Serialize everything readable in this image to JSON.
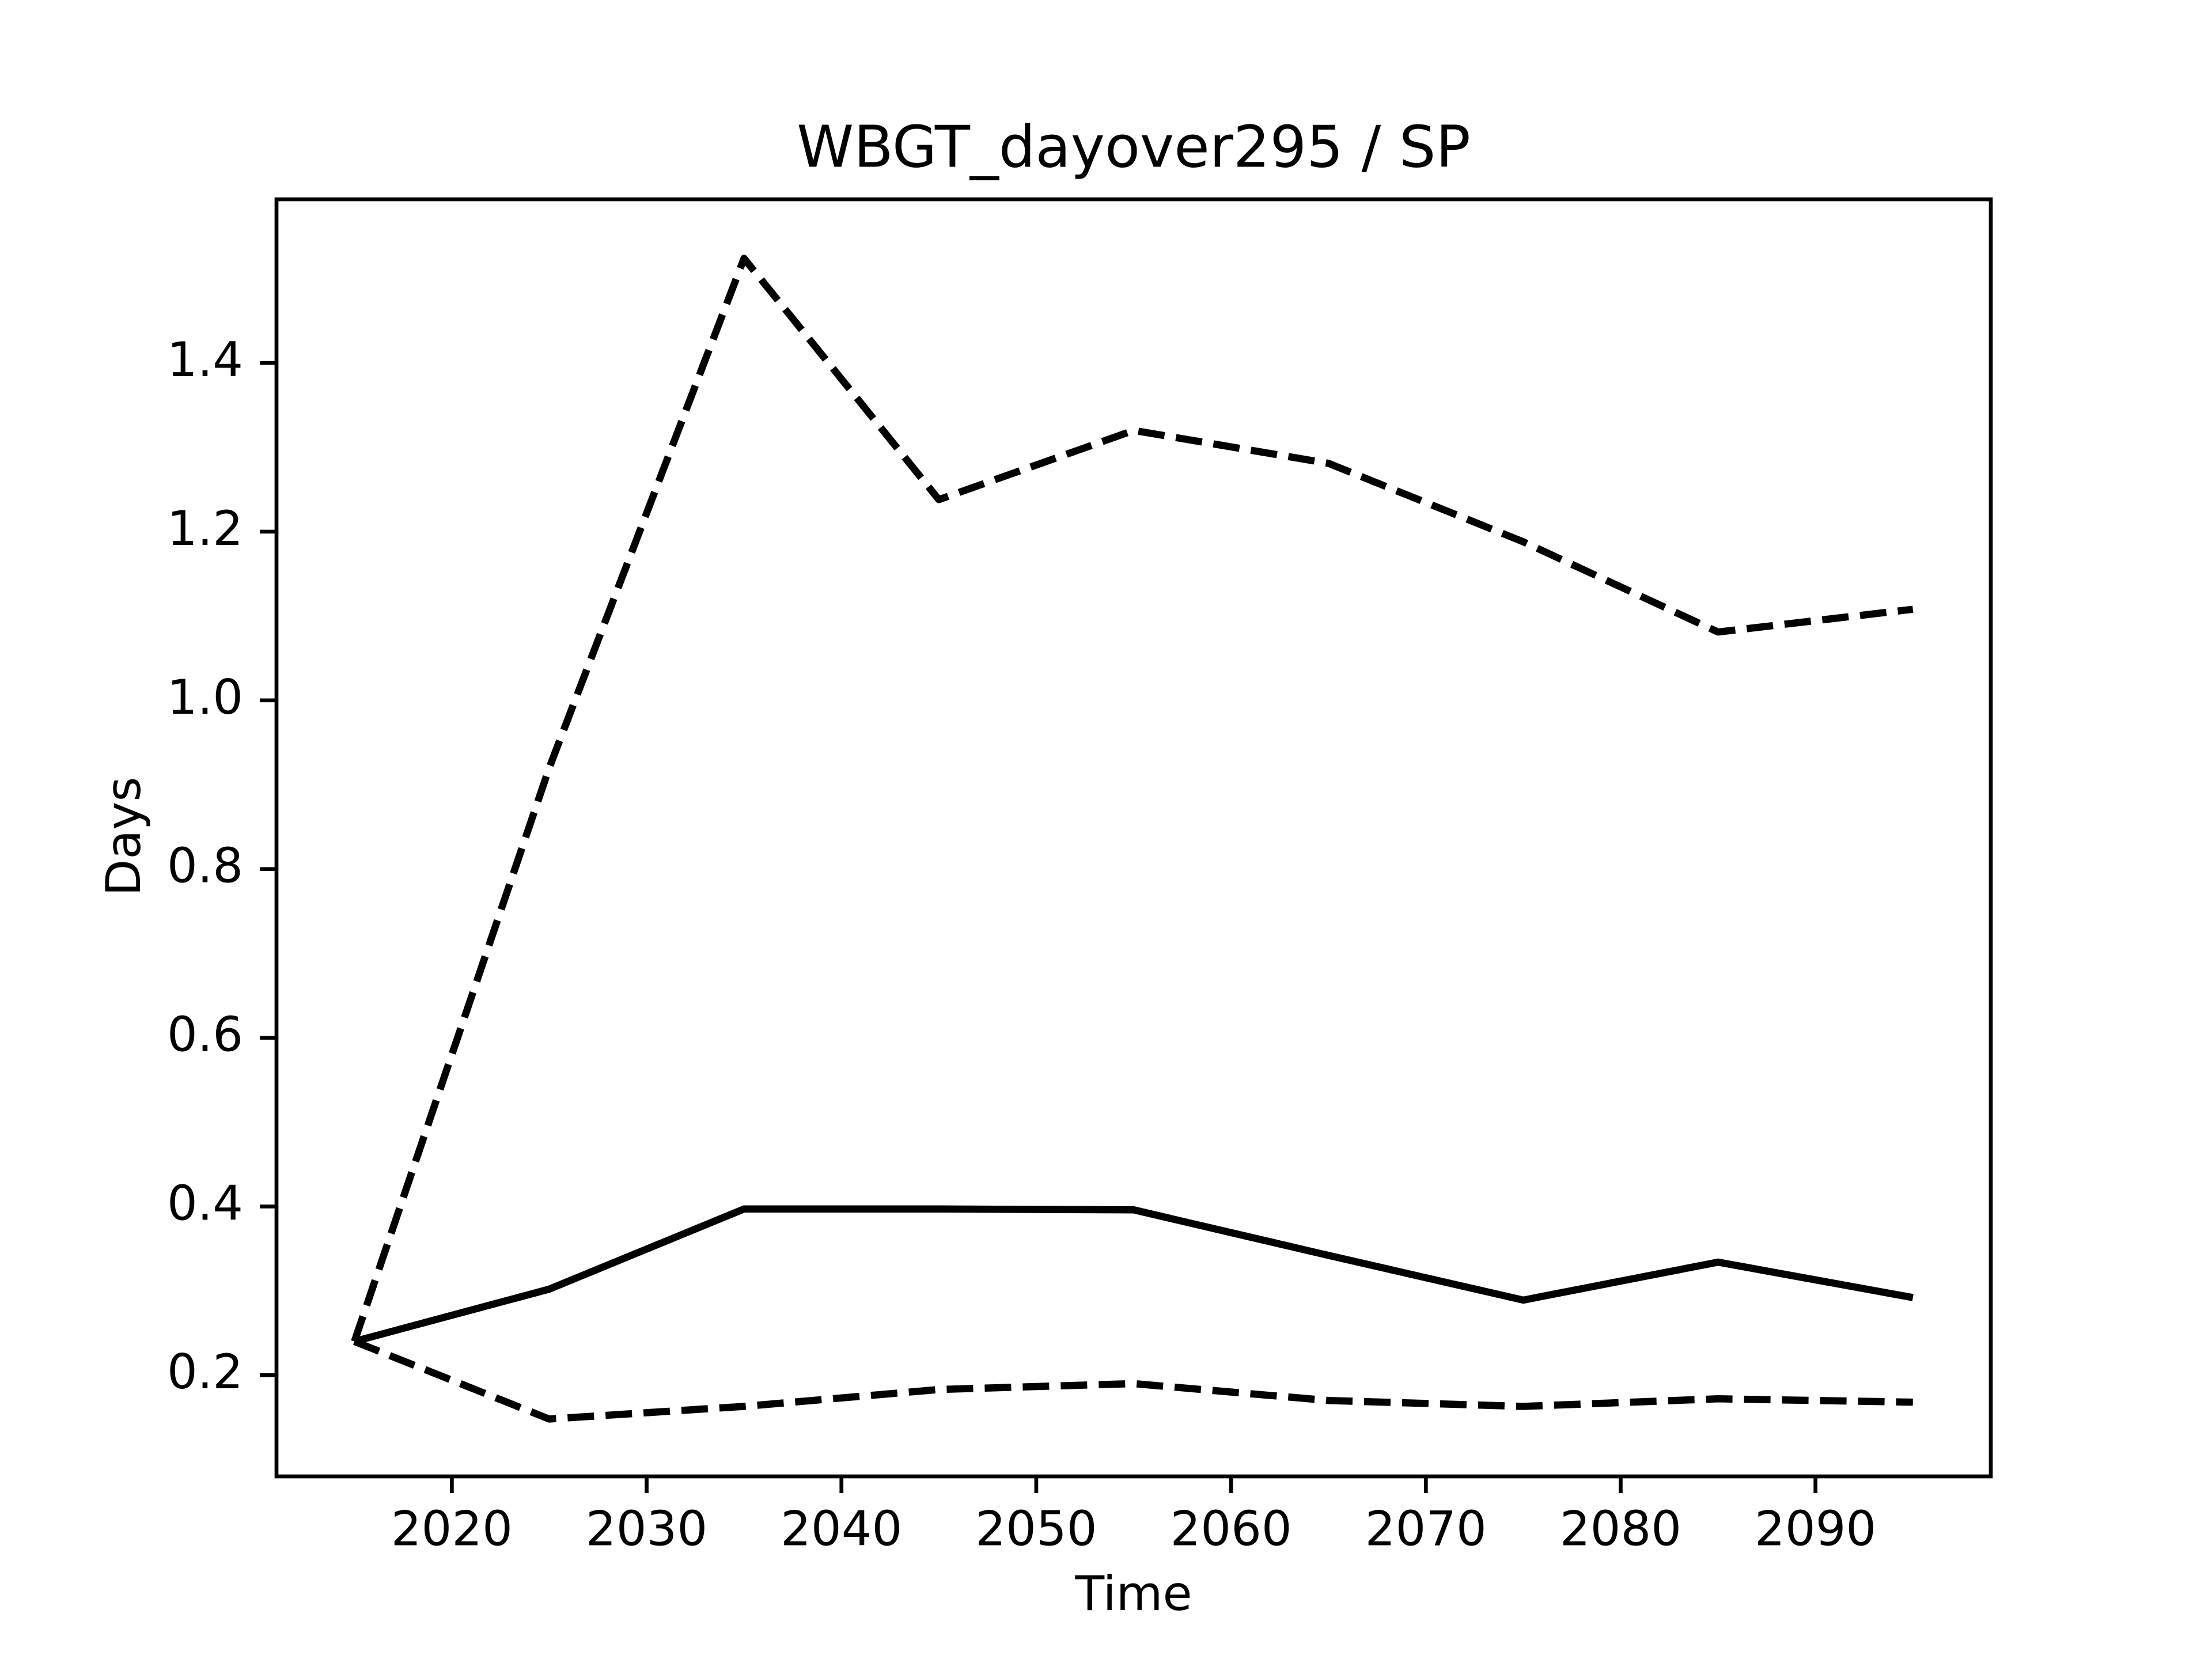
{
  "chart_data": {
    "type": "line",
    "title": "WBGT_dayover295 / SP",
    "xlabel": "Time",
    "ylabel": "Days",
    "x": [
      2015,
      2025,
      2035,
      2045,
      2055,
      2065,
      2075,
      2085,
      2095
    ],
    "series": [
      {
        "color": "#000000",
        "linestyle": "solid",
        "values": [
          0.24,
          0.302,
          0.397,
          0.397,
          0.396,
          0.342,
          0.289,
          0.334,
          0.292
        ]
      },
      {
        "color": "#000000",
        "linestyle": "dashed",
        "values": [
          0.24,
          0.92,
          1.524,
          1.238,
          1.32,
          1.281,
          1.188,
          1.081,
          1.108
        ]
      },
      {
        "color": "#000000",
        "linestyle": "dashed",
        "values": [
          0.24,
          0.148,
          0.163,
          0.183,
          0.19,
          0.17,
          0.163,
          0.172,
          0.168
        ]
      }
    ],
    "xlim": [
      2011,
      2099
    ],
    "ylim": [
      0.08,
      1.594
    ],
    "xticks": [
      2020,
      2030,
      2040,
      2050,
      2060,
      2070,
      2080,
      2090
    ],
    "yticks": [
      0.2,
      0.4,
      0.6,
      0.8,
      {
        "value": 1,
        "label": "1.0"
      },
      1.2,
      1.4
    ],
    "grid": false
  }
}
